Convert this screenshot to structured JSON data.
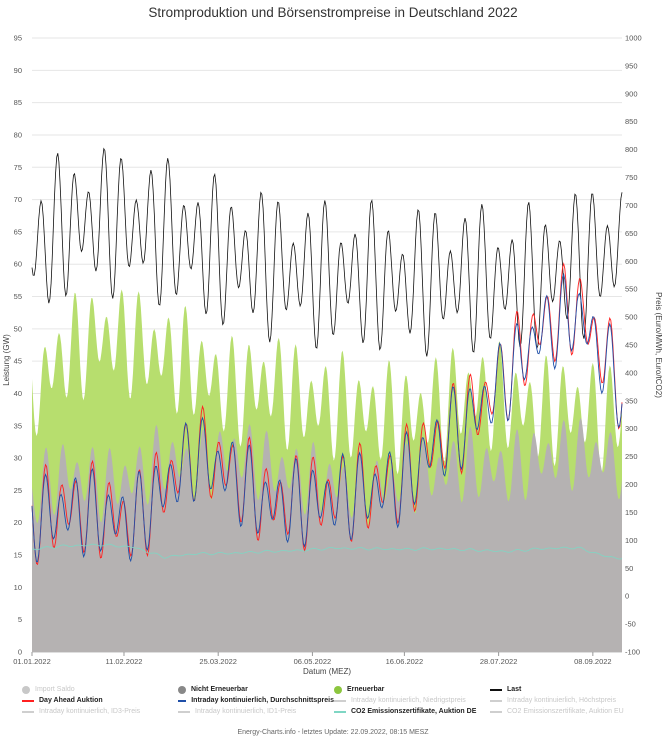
{
  "chart_data": {
    "type": "area",
    "title": "Stromproduktion und Börsenstrompreise in Deutschland 2022",
    "xlabel": "Datum (MEZ)",
    "ylabel": "Leistung (GW)",
    "y2label": "Preis (Euro/MWh, Euro/tCO2)",
    "xlim": [
      "2022-01-01",
      "2022-09-21"
    ],
    "ylim": [
      0,
      95
    ],
    "y2lim": [
      -100,
      1000
    ],
    "x_ticks": [
      "01.01.2022",
      "11.02.2022",
      "25.03.2022",
      "06.05.2022",
      "16.06.2022",
      "28.07.2022",
      "08.09.2022"
    ],
    "y_ticks": [
      "0",
      "5",
      "10",
      "15",
      "20",
      "25",
      "30",
      "35",
      "40",
      "45",
      "50",
      "55",
      "60",
      "65",
      "70",
      "75",
      "80",
      "85",
      "90",
      "95"
    ],
    "y2_ticks": [
      "-100",
      "-50",
      "0",
      "50",
      "100",
      "150",
      "200",
      "250",
      "300",
      "350",
      "400",
      "450",
      "500",
      "550",
      "600",
      "650",
      "700",
      "750",
      "800",
      "850",
      "900",
      "950",
      "1000"
    ],
    "grid": true,
    "legend_position": "bottom",
    "x_sample_dates": [
      "2022-01-01",
      "2022-01-15",
      "2022-02-01",
      "2022-02-15",
      "2022-03-01",
      "2022-03-15",
      "2022-04-01",
      "2022-04-15",
      "2022-05-01",
      "2022-05-15",
      "2022-06-01",
      "2022-06-15",
      "2022-07-01",
      "2022-07-15",
      "2022-08-01",
      "2022-08-15",
      "2022-09-01",
      "2022-09-15",
      "2022-09-21"
    ],
    "series": [
      {
        "name": "Nicht Erneuerbar",
        "axis": "left",
        "kind": "area",
        "color": "#b5b2b2",
        "values": [
          24,
          28,
          26,
          27,
          30,
          28,
          31,
          29,
          27,
          26,
          25,
          27,
          28,
          29,
          28,
          30,
          31,
          30,
          29
        ]
      },
      {
        "name": "Erneuerbar",
        "axis": "left",
        "kind": "area",
        "color": "#b7de6e",
        "values": [
          40,
          46,
          49,
          48,
          46,
          44,
          40,
          42,
          39,
          38,
          37,
          36,
          38,
          40,
          39,
          37,
          38,
          36,
          38
        ]
      },
      {
        "name": "Last",
        "axis": "left",
        "kind": "line",
        "color": "#111111",
        "values": [
          62,
          66,
          67,
          66,
          65,
          63,
          61,
          60,
          59,
          58,
          58,
          57,
          58,
          58,
          57,
          58,
          60,
          62,
          62
        ]
      },
      {
        "name": "Day Ahead Auktion",
        "axis": "right",
        "kind": "line",
        "color": "#ff2020",
        "values": [
          140,
          160,
          150,
          130,
          200,
          260,
          220,
          170,
          170,
          180,
          190,
          210,
          280,
          320,
          400,
          480,
          520,
          420,
          380
        ]
      },
      {
        "name": "Intraday kontinuierlich, Durchschnittspreis",
        "axis": "right",
        "kind": "line",
        "color": "#1f4fa8",
        "values": [
          140,
          155,
          145,
          130,
          195,
          255,
          215,
          165,
          165,
          178,
          188,
          205,
          275,
          315,
          395,
          470,
          510,
          410,
          370
        ]
      },
      {
        "name": "CO2 Emissionszertifikate, Auktion DE",
        "axis": "right",
        "kind": "line",
        "color": "#7fd6c4",
        "values": [
          84,
          90,
          92,
          88,
          70,
          76,
          77,
          80,
          82,
          86,
          85,
          84,
          85,
          83,
          80,
          85,
          87,
          70,
          68
        ]
      }
    ]
  },
  "legend": [
    {
      "label": "Import Saldo",
      "symbol": "dot",
      "color": "#c8c8c8",
      "state": "disabled"
    },
    {
      "label": "Nicht Erneuerbar",
      "symbol": "dot",
      "color": "#888888",
      "state": "active"
    },
    {
      "label": "Erneuerbar",
      "symbol": "dot",
      "color": "#8cc63f",
      "state": "active"
    },
    {
      "label": "Last",
      "symbol": "line",
      "color": "#111111",
      "state": "active"
    },
    {
      "label": "Day Ahead Auktion",
      "symbol": "line",
      "color": "#ff2020",
      "state": "active"
    },
    {
      "label": "Intraday kontinuierlich, Durchschnittspreis",
      "symbol": "line",
      "color": "#1f4fa8",
      "state": "active"
    },
    {
      "label": "Intraday kontinuierlich, Niedrigstpreis",
      "symbol": "line",
      "color": "#cfcfcf",
      "state": "disabled"
    },
    {
      "label": "Intraday kontinuierlich, Höchstpreis",
      "symbol": "line",
      "color": "#cfcfcf",
      "state": "disabled"
    },
    {
      "label": "Intraday kontinuierlich, ID3-Preis",
      "symbol": "line",
      "color": "#cfcfcf",
      "state": "disabled"
    },
    {
      "label": "Intraday kontinuierlich, ID1-Preis",
      "symbol": "line",
      "color": "#cfcfcf",
      "state": "disabled"
    },
    {
      "label": "CO2 Emissionszertifikate, Auktion DE",
      "symbol": "line",
      "color": "#7fd6c4",
      "state": "active"
    },
    {
      "label": "CO2 Emissionszertifikate, Auktion EU",
      "symbol": "line",
      "color": "#cfcfcf",
      "state": "disabled"
    }
  ],
  "footer": "Energy-Charts.info - letztes Update: 22.09.2022, 08:15 MESZ"
}
